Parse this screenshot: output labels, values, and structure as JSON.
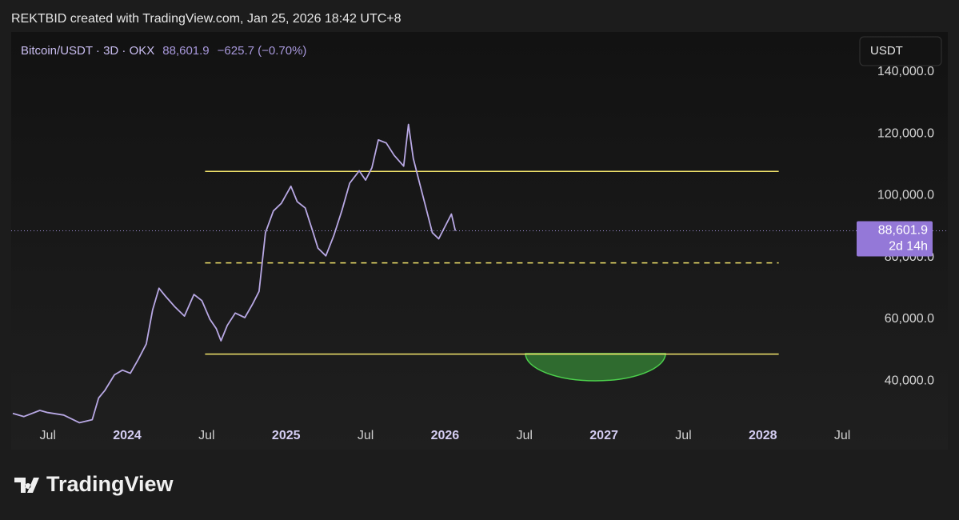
{
  "chart_data": {
    "type": "line",
    "credit": "REKTBID created with TradingView.com, Jan 25, 2026 18:42 UTC+8",
    "title": "Bitcoin/USDT · 3D · OKX",
    "change": "−625.7 (−0.70%)",
    "currency": "USDT",
    "brand": "TradingView",
    "countdown": "2d 14h",
    "last_price": {
      "value": 88601.9,
      "label": "88,601.9"
    },
    "series": [
      {
        "name": "Bitcoin/USDT",
        "color": "#b8a8e4",
        "x": [
          2023.28,
          2023.35,
          2023.45,
          2023.5,
          2023.6,
          2023.7,
          2023.78,
          2023.82,
          2023.86,
          2023.92,
          2023.97,
          2024.02,
          2024.07,
          2024.12,
          2024.16,
          2024.2,
          2024.24,
          2024.3,
          2024.36,
          2024.42,
          2024.47,
          2024.52,
          2024.56,
          2024.59,
          2024.63,
          2024.68,
          2024.74,
          2024.79,
          2024.83,
          2024.87,
          2024.92,
          2024.97,
          2025.03,
          2025.07,
          2025.12,
          2025.17,
          2025.2,
          2025.25,
          2025.3,
          2025.35,
          2025.4,
          2025.46,
          2025.5,
          2025.54,
          2025.58,
          2025.63,
          2025.68,
          2025.74,
          2025.77,
          2025.8,
          2025.84,
          2025.88,
          2025.92,
          2025.96,
          2026.0,
          2026.04,
          2026.065
        ],
        "values": [
          29500,
          28500,
          30500,
          29800,
          29000,
          26500,
          27500,
          34500,
          37000,
          42000,
          43500,
          42500,
          47000,
          52000,
          63000,
          70000,
          67500,
          64000,
          61000,
          68000,
          66000,
          60000,
          57000,
          53000,
          58000,
          62000,
          60500,
          65000,
          69000,
          88000,
          95000,
          97500,
          103000,
          98000,
          96000,
          88000,
          83000,
          80500,
          87000,
          95000,
          104000,
          108000,
          105000,
          109000,
          118000,
          117000,
          113000,
          109500,
          123000,
          112000,
          104000,
          96000,
          88000,
          86000,
          90000,
          94000,
          88601.9
        ]
      }
    ],
    "levels": [
      {
        "value": 107800,
        "x": [
          2024.49,
          2028.1
        ],
        "color": "#f2e46b",
        "style": "solid"
      },
      {
        "value": 78200,
        "x": [
          2024.49,
          2028.1
        ],
        "color": "#f2e46b",
        "style": "dashed"
      },
      {
        "value": 48700,
        "x": [
          2024.49,
          2028.1
        ],
        "color": "#f2e46b",
        "style": "solid"
      }
    ],
    "xlim": [
      2023.27,
      2028.585
    ],
    "xticks": [
      {
        "value": 2023.5,
        "label": "Jul"
      },
      {
        "value": 2024,
        "label": "2024"
      },
      {
        "value": 2024.5,
        "label": "Jul"
      },
      {
        "value": 2025,
        "label": "2025"
      },
      {
        "value": 2025.5,
        "label": "Jul"
      },
      {
        "value": 2026,
        "label": "2026"
      },
      {
        "value": 2026.5,
        "label": "Jul"
      },
      {
        "value": 2027,
        "label": "2027"
      },
      {
        "value": 2027.5,
        "label": "Jul"
      },
      {
        "value": 2028,
        "label": "2028"
      },
      {
        "value": 2028.5,
        "label": "Jul"
      }
    ],
    "ylim": [
      24800,
      152900
    ],
    "yticks": [
      {
        "value": 40000,
        "label": "40,000.0"
      },
      {
        "value": 60000,
        "label": "60,000.0"
      },
      {
        "value": 80000,
        "label": "80,000.0"
      },
      {
        "value": 100000,
        "label": "100,000.0"
      },
      {
        "value": 120000,
        "label": "120,000.0"
      },
      {
        "value": 140000,
        "label": "140,000.0"
      }
    ],
    "grid": false
  }
}
